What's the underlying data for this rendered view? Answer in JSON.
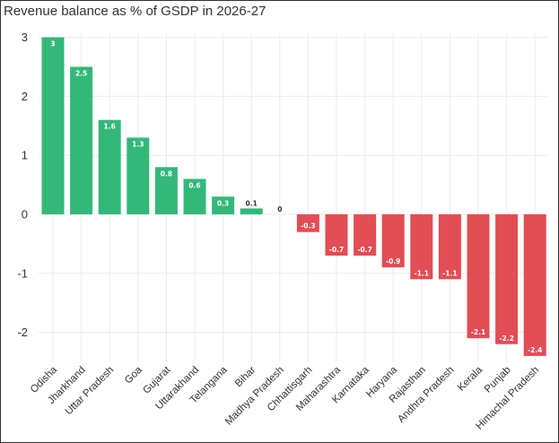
{
  "chart_data": {
    "type": "bar",
    "title": "Revenue balance as % of GSDP in 2026-27",
    "xlabel": "",
    "ylabel": "",
    "ylim": [
      -2.5,
      3
    ],
    "yticks": [
      -2,
      -1,
      0,
      1,
      2,
      3
    ],
    "grid": true,
    "legend": "none",
    "categories": [
      "Odisha",
      "Jharkhand",
      "Uttar Pradesh",
      "Goa",
      "Gujarat",
      "Uttarakhand",
      "Telangana",
      "Bihar",
      "Madhya Pradesh",
      "Chhattisgarh",
      "Maharashtra",
      "Karnataka",
      "Haryana",
      "Rajasthan",
      "Andhra Pradesh",
      "Kerala",
      "Punjab",
      "Himachal Pradesh"
    ],
    "values": [
      3,
      2.5,
      1.6,
      1.3,
      0.8,
      0.6,
      0.3,
      0.1,
      0,
      -0.3,
      -0.7,
      -0.7,
      -0.9,
      -1.1,
      -1.1,
      -2.1,
      -2.2,
      -2.4
    ],
    "colors": {
      "positive": "#33b87a",
      "negative": "#e34d55",
      "grid": "#ebebeb",
      "text": "#333333",
      "label_light": "#ffffff",
      "label_dark": "#333333"
    }
  }
}
